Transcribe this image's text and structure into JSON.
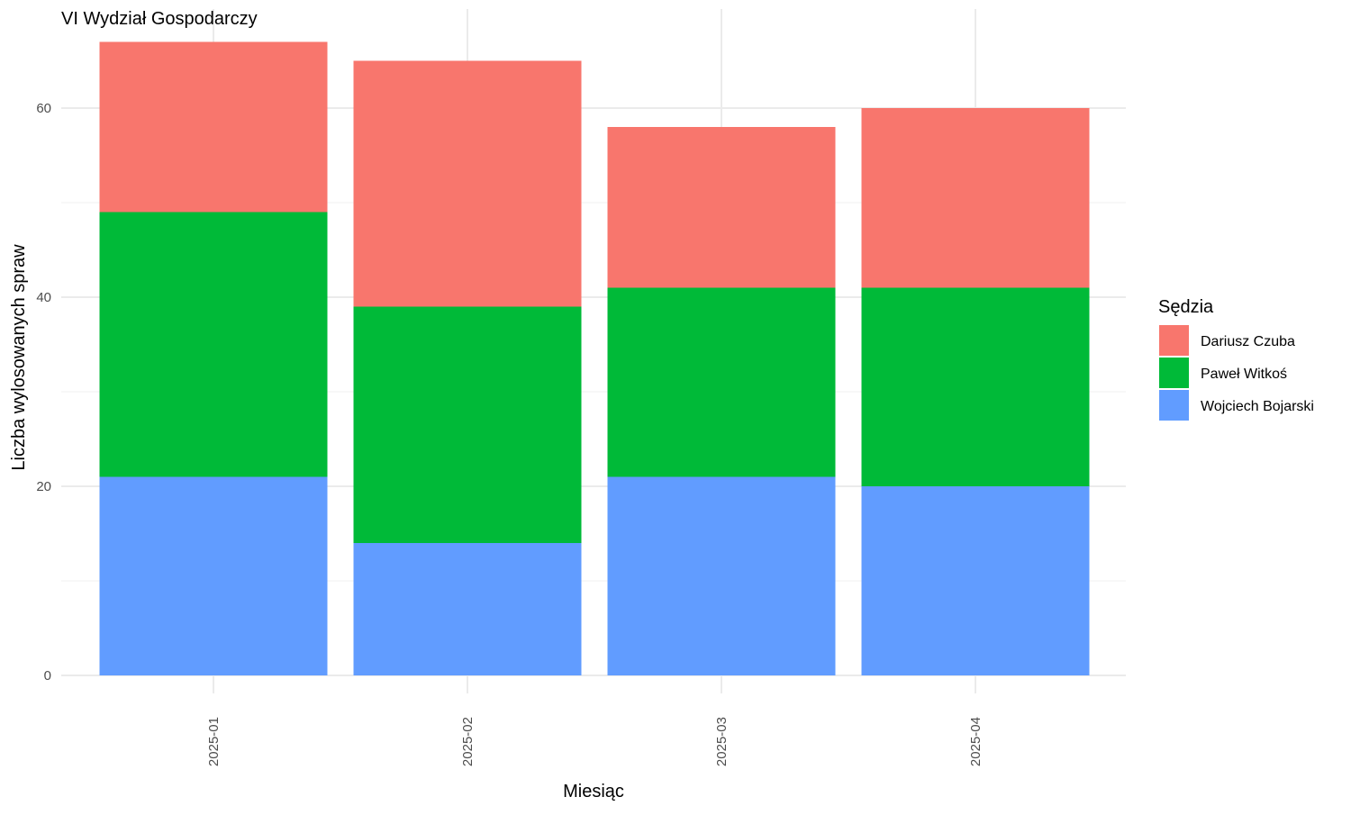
{
  "chart_data": {
    "type": "bar",
    "stacked": true,
    "title": "VI Wydział Gospodarczy",
    "xlabel": "Miesiąc",
    "ylabel": "Liczba wylosowanych spraw",
    "categories": [
      "2025-01",
      "2025-02",
      "2025-03",
      "2025-04"
    ],
    "series": [
      {
        "name": "Wojciech Bojarski",
        "color": "#619CFF",
        "values": [
          21,
          14,
          21,
          20
        ]
      },
      {
        "name": "Paweł Witkoś",
        "color": "#00BA38",
        "values": [
          28,
          25,
          20,
          21
        ]
      },
      {
        "name": "Dariusz Czuba",
        "color": "#F8766D",
        "values": [
          18,
          26,
          17,
          19
        ]
      }
    ],
    "legend": {
      "title": "Sędzia",
      "placement": "right",
      "order": [
        "Dariusz Czuba",
        "Paweł Witkoś",
        "Wojciech Bojarski"
      ]
    },
    "ylim": [
      0,
      67
    ],
    "yticks": [
      0,
      20,
      40,
      60
    ],
    "grid": true,
    "x_tick_rotation": -90
  }
}
